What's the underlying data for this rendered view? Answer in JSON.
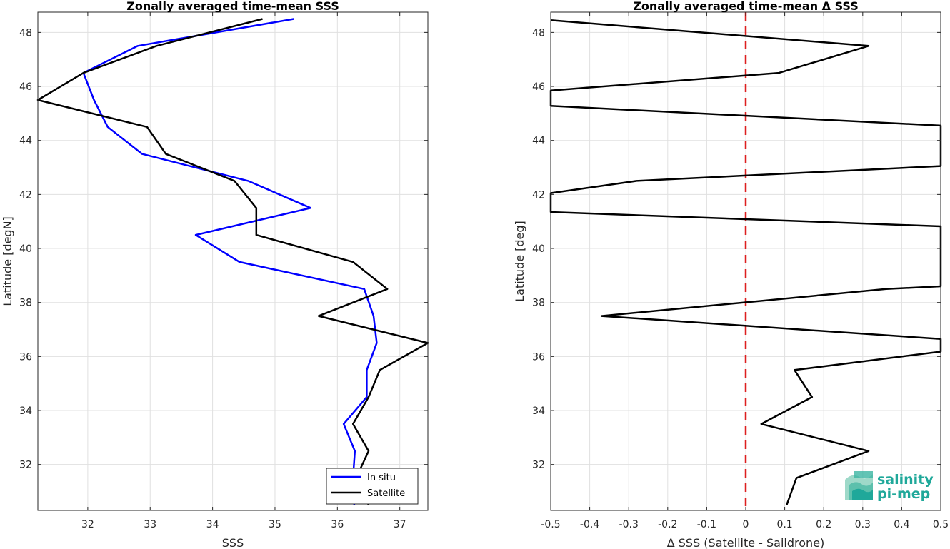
{
  "chart_data": [
    {
      "type": "line",
      "title": "Zonally averaged time-mean SSS",
      "xlabel": "SSS",
      "ylabel": "Latitude [degN]",
      "xlim": [
        31.2,
        37.45
      ],
      "ylim": [
        30.3,
        48.75
      ],
      "xticks": [
        32,
        33,
        34,
        35,
        36,
        37
      ],
      "yticks": [
        32,
        34,
        36,
        38,
        40,
        42,
        44,
        46,
        48
      ],
      "grid": true,
      "legend": "bottom-right",
      "series": [
        {
          "name": "In situ",
          "color": "#0000ff",
          "points": [
            [
              35.3,
              48.5
            ],
            [
              32.8,
              47.5
            ],
            [
              31.93,
              46.5
            ],
            [
              32.1,
              45.5
            ],
            [
              32.32,
              44.5
            ],
            [
              32.87,
              43.5
            ],
            [
              34.57,
              42.5
            ],
            [
              35.57,
              41.5
            ],
            [
              33.73,
              40.5
            ],
            [
              34.43,
              39.5
            ],
            [
              36.43,
              38.5
            ],
            [
              36.58,
              37.5
            ],
            [
              36.63,
              36.5
            ],
            [
              36.47,
              35.5
            ],
            [
              36.47,
              34.5
            ],
            [
              36.1,
              33.5
            ],
            [
              36.28,
              32.5
            ],
            [
              36.25,
              31.5
            ],
            [
              36.27,
              30.5
            ]
          ]
        },
        {
          "name": "Satellite",
          "color": "#000000",
          "points": [
            [
              34.8,
              48.5
            ],
            [
              33.1,
              47.5
            ],
            [
              31.93,
              46.5
            ],
            [
              31.2,
              45.5
            ],
            [
              32.95,
              44.5
            ],
            [
              33.25,
              43.5
            ],
            [
              34.35,
              42.5
            ],
            [
              34.7,
              41.5
            ],
            [
              34.7,
              40.5
            ],
            [
              36.25,
              39.5
            ],
            [
              36.8,
              38.5
            ],
            [
              35.7,
              37.5
            ],
            [
              37.45,
              36.5
            ],
            [
              36.68,
              35.5
            ],
            [
              36.5,
              34.5
            ],
            [
              36.25,
              33.5
            ],
            [
              36.5,
              32.5
            ],
            [
              36.3,
              31.5
            ],
            [
              36.5,
              30.5
            ]
          ]
        }
      ]
    },
    {
      "type": "line",
      "title": "Zonally averaged time-mean Δ SSS",
      "xlabel": "Δ SSS (Satellite - Saildrone)",
      "ylabel": "Latitude [deg]",
      "xlim": [
        -0.5,
        0.5
      ],
      "ylim": [
        30.3,
        48.75
      ],
      "xticks": [
        -0.5,
        -0.4,
        -0.3,
        -0.2,
        -0.1,
        0,
        0.1,
        0.2,
        0.3,
        0.4,
        0.5
      ],
      "yticks": [
        32,
        34,
        36,
        38,
        40,
        42,
        44,
        46,
        48
      ],
      "grid": true,
      "reference_line": {
        "x": 0,
        "color": "#dd1f1f",
        "style": "dashed"
      },
      "series": [
        {
          "color": "#000000",
          "points": [
            [
              -0.5,
              48.45
            ],
            [
              0.315,
              47.5
            ],
            [
              0.085,
              46.5
            ],
            [
              -0.5,
              45.85
            ],
            [
              -0.5,
              45.28
            ],
            [
              0.5,
              44.55
            ],
            [
              0.5,
              43.05
            ],
            [
              -0.28,
              42.5
            ],
            [
              -0.5,
              42.05
            ],
            [
              -0.5,
              41.35
            ],
            [
              0.5,
              40.82
            ],
            [
              0.5,
              38.6
            ],
            [
              0.36,
              38.5
            ],
            [
              -0.37,
              37.5
            ],
            [
              0.5,
              36.65
            ],
            [
              0.5,
              36.18
            ],
            [
              0.125,
              35.5
            ],
            [
              0.17,
              34.5
            ],
            [
              0.04,
              33.5
            ],
            [
              0.315,
              32.5
            ],
            [
              0.13,
              31.5
            ],
            [
              0.105,
              30.5
            ]
          ]
        }
      ]
    }
  ],
  "legend_items": [
    "In situ",
    "Satellite"
  ],
  "logo": {
    "line1": "salinity",
    "line2": "pi-mep"
  }
}
